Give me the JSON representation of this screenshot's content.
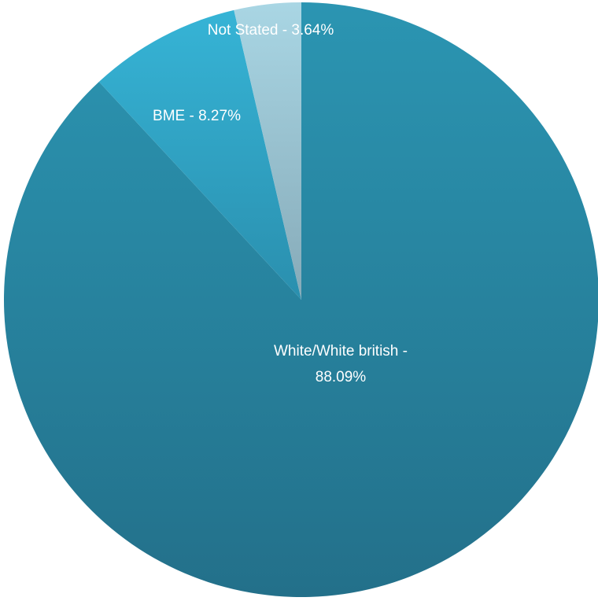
{
  "chart_data": {
    "type": "pie",
    "title": "",
    "slices": [
      {
        "label": "White/White british",
        "value": 88.09,
        "label_lines": [
          "White/White british -",
          "88.09%"
        ],
        "color": "#2a8aa2"
      },
      {
        "label": "BME",
        "value": 8.27,
        "label_lines": [
          "BME - 8.27%"
        ],
        "color": "#33a9c9"
      },
      {
        "label": "Not Stated",
        "value": 3.64,
        "label_lines": [
          "Not Stated - 3.64%"
        ],
        "color": "#96c8d8"
      }
    ],
    "legend": "none",
    "start_angle": "12 o'clock",
    "direction": "clockwise"
  }
}
